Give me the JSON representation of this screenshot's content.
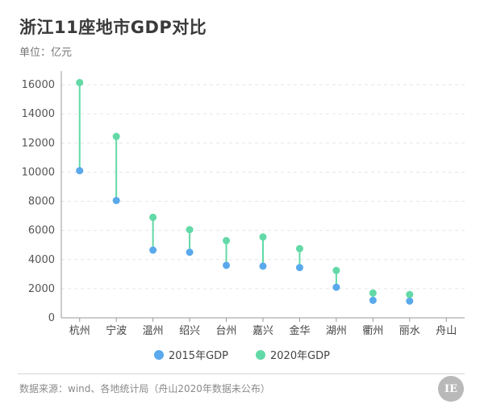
{
  "header": {
    "title": "浙江11座地市GDP对比",
    "unit": "单位：亿元"
  },
  "legend": {
    "items": [
      {
        "label": "2015年GDP",
        "color": "#5aa9ec"
      },
      {
        "label": "2020年GDP",
        "color": "#62d9a6"
      }
    ]
  },
  "footer": {
    "source": "数据来源：wind、各地统计局（舟山2020年数据未公布）",
    "logo_text": "IE"
  },
  "chart_data": {
    "type": "dumbbell",
    "categories": [
      "杭州",
      "宁波",
      "温州",
      "绍兴",
      "台州",
      "嘉兴",
      "金华",
      "湖州",
      "衢州",
      "丽水",
      "舟山"
    ],
    "series": [
      {
        "name": "2015年GDP",
        "values": [
          10100,
          8050,
          4650,
          4500,
          3600,
          3550,
          3450,
          2100,
          1200,
          1150,
          null
        ]
      },
      {
        "name": "2020年GDP",
        "values": [
          16150,
          12450,
          6900,
          6050,
          5300,
          5550,
          4750,
          3250,
          1700,
          1600,
          null
        ]
      }
    ],
    "ylim": [
      0,
      16000
    ],
    "yticks": [
      0,
      2000,
      4000,
      6000,
      8000,
      10000,
      12000,
      14000,
      16000
    ],
    "grid": true,
    "colors": {
      "s2015": "#5aa9ec",
      "s2020": "#62d9a6",
      "connector": "#62d9a6"
    }
  }
}
